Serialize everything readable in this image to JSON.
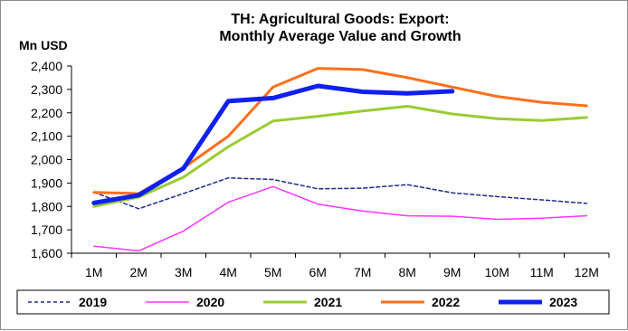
{
  "chart_data": {
    "type": "line",
    "title_line1": "TH: Agricultural Goods: Export:",
    "title_line2": "Monthly Average Value and Growth",
    "ylabel": "Mn USD",
    "xlabel": "",
    "categories": [
      "1M",
      "2M",
      "3M",
      "4M",
      "5M",
      "6M",
      "7M",
      "8M",
      "9M",
      "10M",
      "11M",
      "12M"
    ],
    "ylim": [
      1600,
      2400
    ],
    "yticks": [
      1600,
      1700,
      1800,
      1900,
      2000,
      2100,
      2200,
      2300,
      2400
    ],
    "ytick_labels": [
      "1,600",
      "1,700",
      "1,800",
      "1,900",
      "2,000",
      "2,100",
      "2,200",
      "2,300",
      "2,400"
    ],
    "grid": false,
    "legend_position": "bottom",
    "series": [
      {
        "name": "2019",
        "color": "#1f2a8a",
        "style": "dashed",
        "width": 1.5,
        "values": [
          1860,
          1790,
          1855,
          1922,
          1915,
          1875,
          1878,
          1893,
          1858,
          1842,
          1828,
          1813
        ]
      },
      {
        "name": "2020",
        "color": "#ff33ff",
        "style": "solid",
        "width": 1.5,
        "values": [
          1630,
          1610,
          1695,
          1818,
          1885,
          1810,
          1780,
          1760,
          1758,
          1745,
          1750,
          1760
        ]
      },
      {
        "name": "2021",
        "color": "#99cc33",
        "style": "solid",
        "width": 3,
        "values": [
          1800,
          1840,
          1925,
          2055,
          2165,
          2185,
          2208,
          2228,
          2195,
          2175,
          2167,
          2180
        ]
      },
      {
        "name": "2022",
        "color": "#ff6f1a",
        "style": "solid",
        "width": 3,
        "values": [
          1860,
          1855,
          1965,
          2100,
          2310,
          2390,
          2385,
          2350,
          2310,
          2270,
          2245,
          2230
        ]
      },
      {
        "name": "2023",
        "color": "#1020ee",
        "style": "solid",
        "width": 5,
        "values": [
          1815,
          1848,
          1963,
          2250,
          2263,
          2315,
          2290,
          2283,
          2292,
          null,
          null,
          null
        ]
      }
    ]
  }
}
